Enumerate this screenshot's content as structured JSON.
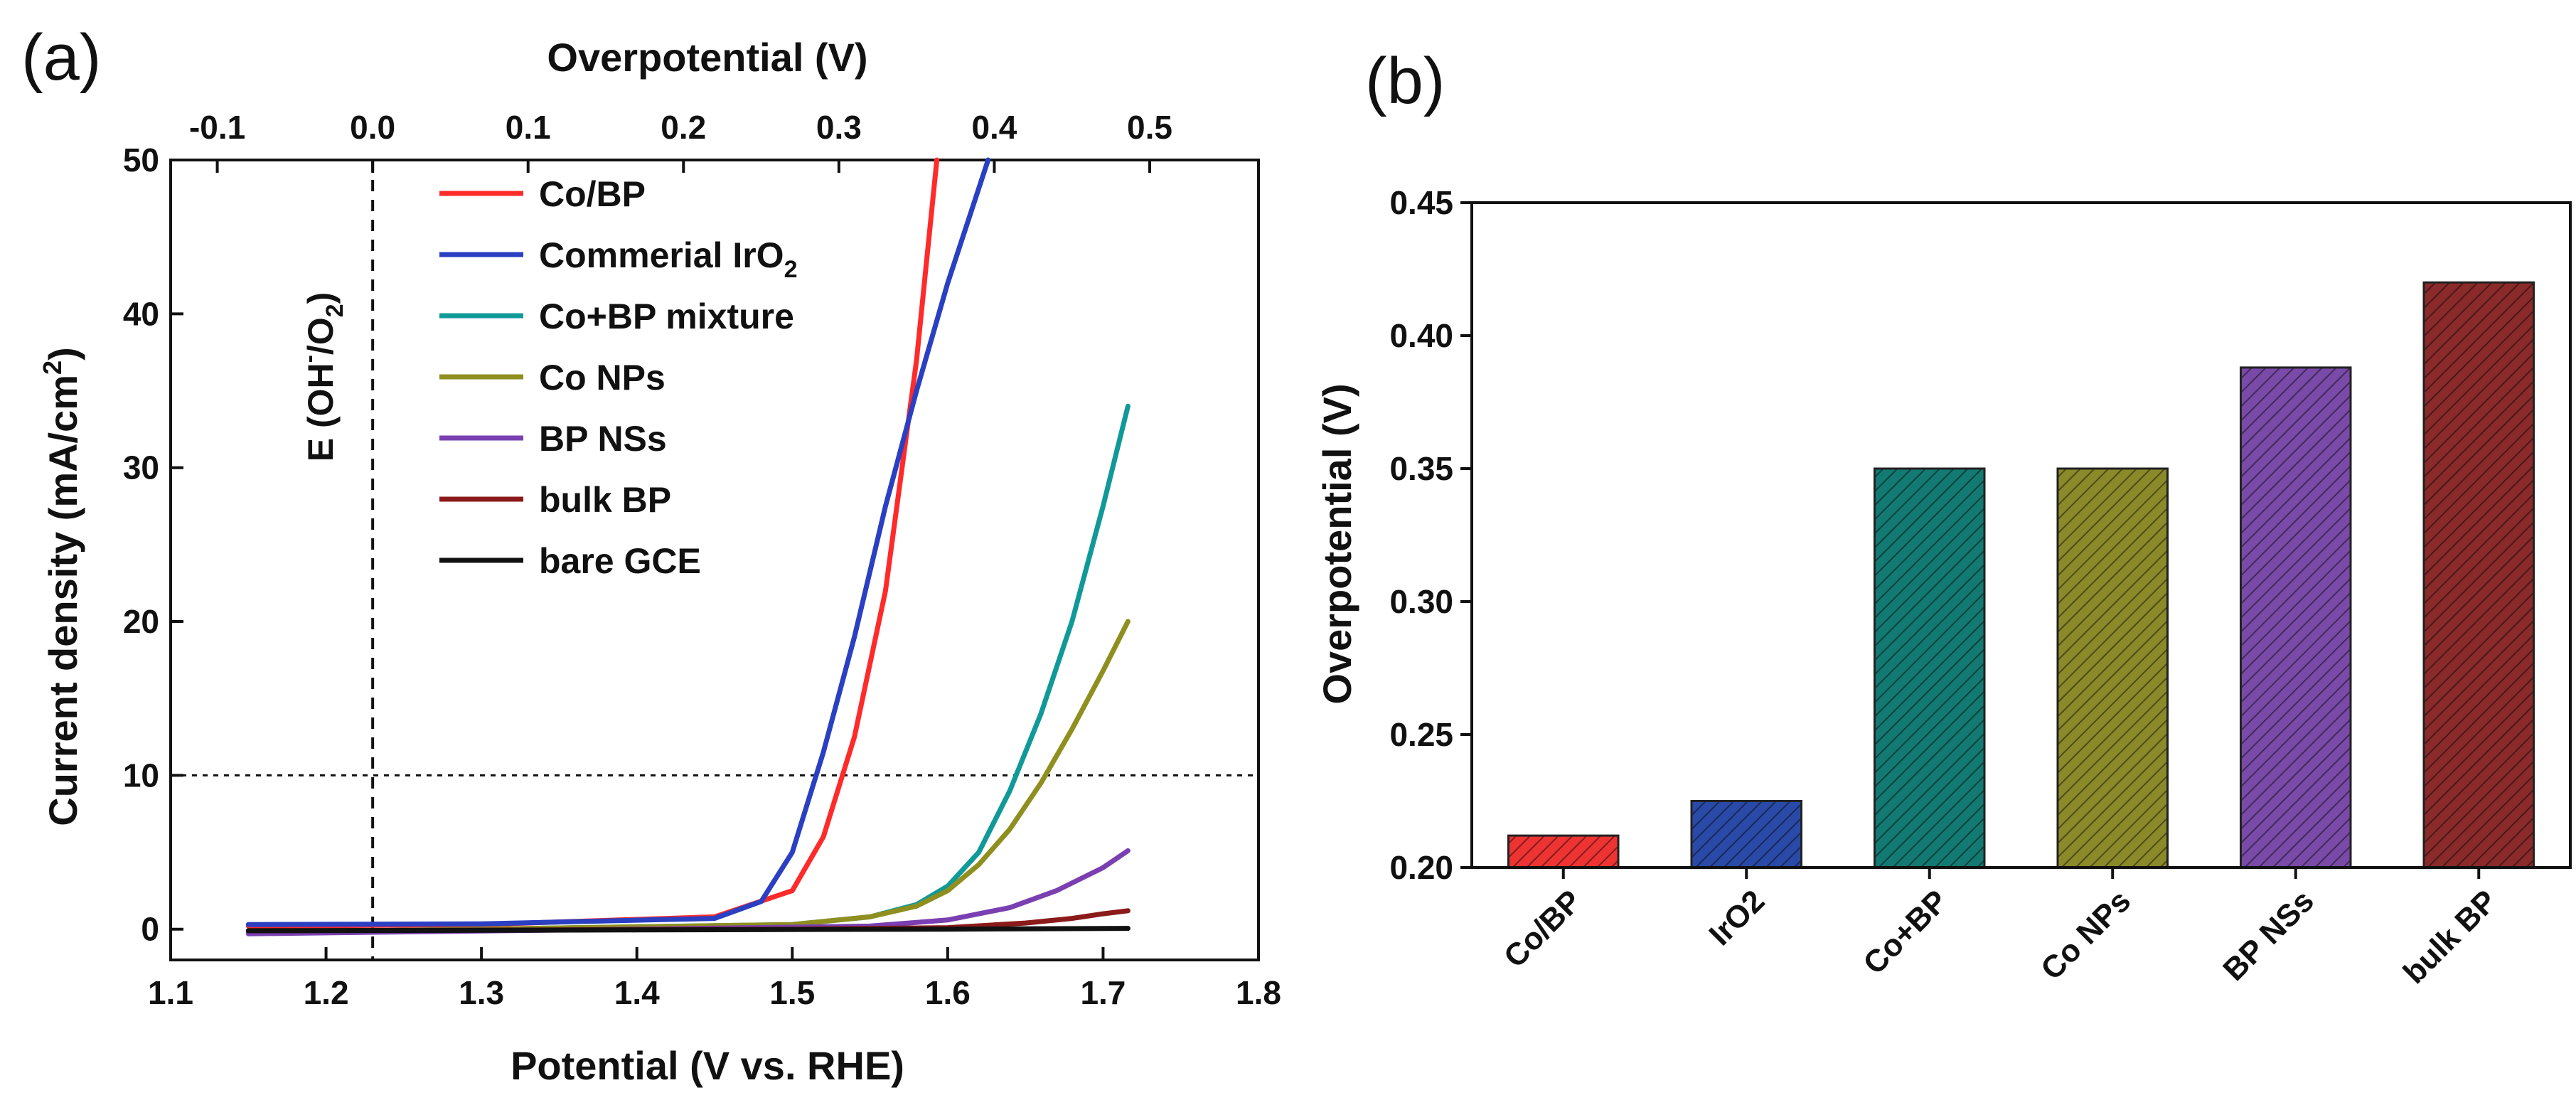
{
  "chart_data": [
    {
      "id": "a",
      "panel_label": "(a)",
      "type": "line",
      "xlabel": "Potential (V vs. RHE)",
      "ylabel": "Current density (mA/cm",
      "ylabel_sup": "2",
      "ylabel_end": ")",
      "top_xlabel": "Overpotential (V)",
      "xlim": [
        1.1,
        1.8
      ],
      "ylim": [
        -2,
        50
      ],
      "xticks": [
        "1.1",
        "1.2",
        "1.3",
        "1.4",
        "1.5",
        "1.6",
        "1.7",
        "1.8"
      ],
      "yticks": [
        "0",
        "10",
        "20",
        "30",
        "40",
        "50"
      ],
      "top_ticks": [
        "-0.1",
        "0.0",
        "0.1",
        "0.2",
        "0.3",
        "0.4",
        "0.5"
      ],
      "top_tick_offset": 1.23,
      "ref_vline_x": 1.23,
      "ref_hline_y": 10,
      "annotation": {
        "pre": "E (OH",
        "sup": "-",
        "mid": "/O",
        "sub": "2",
        "post": ")"
      },
      "grid": false,
      "legend_position": "top-center",
      "series": [
        {
          "name": "Co/BP",
          "color": "#ff2a2a",
          "x": [
            1.15,
            1.3,
            1.45,
            1.5,
            1.52,
            1.54,
            1.56,
            1.58,
            1.593
          ],
          "y": [
            0.2,
            0.3,
            0.8,
            2.5,
            6.0,
            12.5,
            22.0,
            37.0,
            50.0
          ]
        },
        {
          "name": "Commerial IrO",
          "sub": "2",
          "color": "#2a3fc2",
          "x": [
            1.15,
            1.3,
            1.45,
            1.48,
            1.5,
            1.52,
            1.54,
            1.56,
            1.58,
            1.6,
            1.626
          ],
          "y": [
            0.3,
            0.35,
            0.7,
            1.8,
            5.0,
            11.5,
            19.0,
            27.5,
            35.0,
            42.0,
            50.0
          ]
        },
        {
          "name": "Co+BP mixture",
          "color": "#119999",
          "x": [
            1.15,
            1.3,
            1.5,
            1.55,
            1.58,
            1.6,
            1.62,
            1.64,
            1.66,
            1.68,
            1.7,
            1.716
          ],
          "y": [
            -0.2,
            0.0,
            0.3,
            0.8,
            1.6,
            2.8,
            5.0,
            9.0,
            14.0,
            20.0,
            27.5,
            34.0
          ]
        },
        {
          "name": "Co NPs",
          "color": "#8f8f1f",
          "x": [
            1.15,
            1.3,
            1.5,
            1.55,
            1.58,
            1.6,
            1.62,
            1.64,
            1.66,
            1.68,
            1.7,
            1.716
          ],
          "y": [
            -0.2,
            0.0,
            0.3,
            0.8,
            1.5,
            2.5,
            4.2,
            6.5,
            9.5,
            13.0,
            16.8,
            20.0
          ]
        },
        {
          "name": "BP NSs",
          "color": "#7a3fb0",
          "x": [
            1.15,
            1.4,
            1.55,
            1.6,
            1.64,
            1.67,
            1.7,
            1.716
          ],
          "y": [
            -0.3,
            0.0,
            0.2,
            0.6,
            1.4,
            2.5,
            4.0,
            5.1
          ]
        },
        {
          "name": "bulk BP",
          "color": "#8b1a1a",
          "x": [
            1.15,
            1.5,
            1.6,
            1.65,
            1.68,
            1.7,
            1.716
          ],
          "y": [
            -0.1,
            0.0,
            0.1,
            0.4,
            0.7,
            1.0,
            1.2
          ]
        },
        {
          "name": "bare GCE",
          "color": "#111111",
          "x": [
            1.15,
            1.4,
            1.6,
            1.716
          ],
          "y": [
            -0.1,
            -0.05,
            0.0,
            0.05
          ]
        }
      ]
    },
    {
      "id": "b",
      "panel_label": "(b)",
      "type": "bar",
      "ylabel": "Overpotential (V)",
      "ylim": [
        0.2,
        0.45
      ],
      "yticks": [
        "0.20",
        "0.25",
        "0.30",
        "0.35",
        "0.40",
        "0.45"
      ],
      "categories": [
        "Co/BP",
        "IrO2",
        "Co+BP",
        "Co NPs",
        "BP NSs",
        "bulk BP"
      ],
      "values": [
        0.212,
        0.225,
        0.35,
        0.35,
        0.388,
        0.42
      ],
      "colors": [
        "#ee3333",
        "#2a4aa8",
        "#127a72",
        "#8a8a2a",
        "#7a4aa8",
        "#8a2a2a"
      ],
      "fill_pattern": "diagonal-hatch",
      "grid": false
    }
  ]
}
